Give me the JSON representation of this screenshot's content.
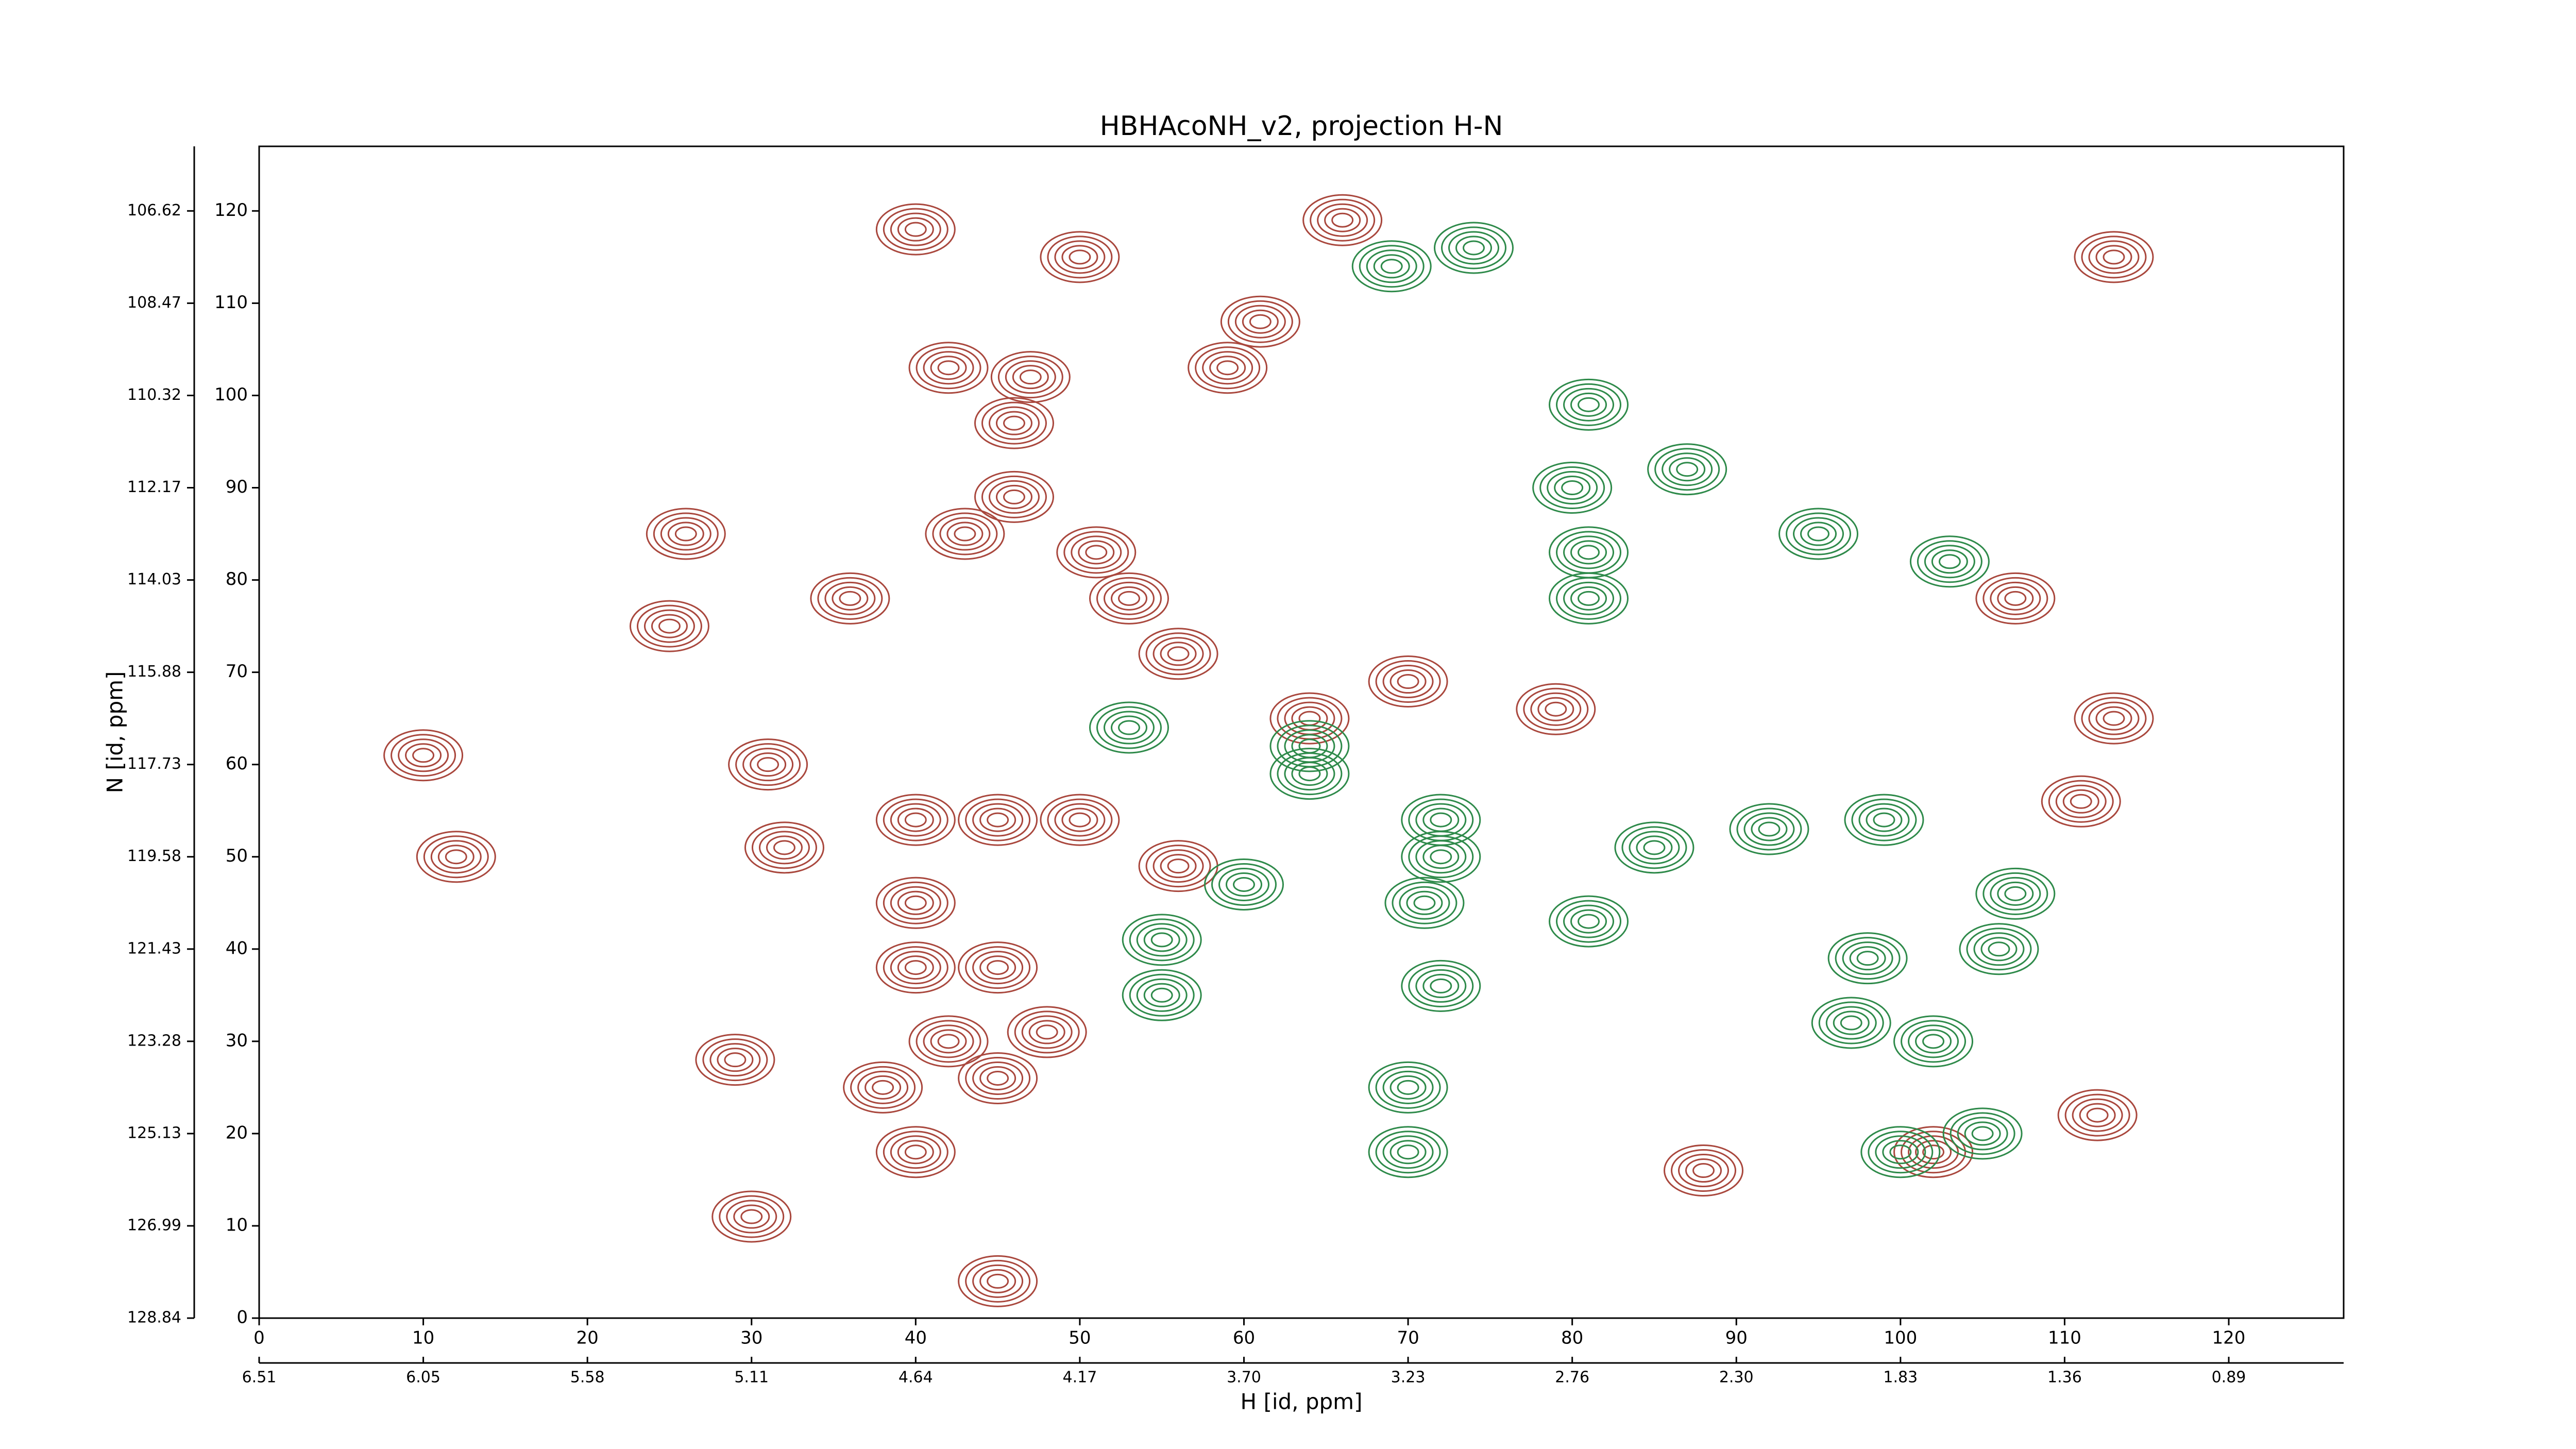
{
  "chart_data": {
    "type": "contour",
    "title": "HBHAcoNH_v2, projection H-N",
    "xlabel": "H [id, ppm]",
    "ylabel": "N [id, ppm]",
    "xlim": [
      0,
      127
    ],
    "ylim": [
      0,
      127
    ],
    "xticks": [
      0,
      10,
      20,
      30,
      40,
      50,
      60,
      70,
      80,
      90,
      100,
      110,
      120
    ],
    "yticks": [
      0,
      10,
      20,
      30,
      40,
      50,
      60,
      70,
      80,
      90,
      100,
      110,
      120
    ],
    "x2ticks": [
      {
        "value": 0,
        "label": "6.51"
      },
      {
        "value": 10,
        "label": "6.05"
      },
      {
        "value": 20,
        "label": "5.58"
      },
      {
        "value": 30,
        "label": "5.11"
      },
      {
        "value": 40,
        "label": "4.64"
      },
      {
        "value": 50,
        "label": "4.17"
      },
      {
        "value": 60,
        "label": "3.70"
      },
      {
        "value": 70,
        "label": "3.23"
      },
      {
        "value": 80,
        "label": "2.76"
      },
      {
        "value": 90,
        "label": "2.30"
      },
      {
        "value": 100,
        "label": "1.83"
      },
      {
        "value": 110,
        "label": "1.36"
      },
      {
        "value": 120,
        "label": "0.89"
      }
    ],
    "y2ticks": [
      {
        "value": 0,
        "label": "128.84"
      },
      {
        "value": 10,
        "label": "126.99"
      },
      {
        "value": 20,
        "label": "125.13"
      },
      {
        "value": 30,
        "label": "123.28"
      },
      {
        "value": 40,
        "label": "121.43"
      },
      {
        "value": 50,
        "label": "119.58"
      },
      {
        "value": 60,
        "label": "117.73"
      },
      {
        "value": 70,
        "label": "115.88"
      },
      {
        "value": 80,
        "label": "114.03"
      },
      {
        "value": 90,
        "label": "112.17"
      },
      {
        "value": 100,
        "label": "110.32"
      },
      {
        "value": 110,
        "label": "108.47"
      },
      {
        "value": 120,
        "label": "106.62"
      }
    ],
    "series": [
      {
        "color": "#a9473d",
        "x": [
          40,
          50,
          42,
          47,
          46,
          59,
          61,
          66,
          113,
          107,
          36,
          43,
          51,
          53,
          31,
          32,
          10,
          12,
          25,
          26,
          46,
          40,
          40,
          45,
          50,
          56,
          45,
          40,
          48,
          42,
          38,
          40,
          45,
          29,
          30,
          45,
          70,
          79,
          64,
          56,
          113,
          111,
          112,
          102,
          88
        ],
        "y": [
          118,
          115,
          103,
          102,
          97,
          103,
          108,
          119,
          115,
          78,
          78,
          85,
          83,
          78,
          60,
          51,
          61,
          50,
          75,
          85,
          89,
          54,
          45,
          54,
          54,
          49,
          38,
          38,
          31,
          30,
          25,
          18,
          26,
          28,
          11,
          4,
          69,
          66,
          65,
          72,
          65,
          56,
          22,
          18,
          16
        ]
      },
      {
        "color": "#2e8a4a",
        "x": [
          70,
          70,
          72,
          72,
          71,
          72,
          55,
          55,
          60,
          53,
          81,
          81,
          81,
          80,
          87,
          95,
          103,
          99,
          107,
          106,
          98,
          97,
          102,
          85,
          92,
          81,
          100,
          105,
          64,
          64,
          69,
          74
        ],
        "y": [
          25,
          18,
          54,
          50,
          45,
          36,
          41,
          35,
          47,
          64,
          99,
          83,
          78,
          90,
          92,
          85,
          82,
          54,
          46,
          40,
          39,
          32,
          30,
          51,
          53,
          43,
          18,
          20,
          62,
          59,
          114,
          116
        ]
      }
    ]
  }
}
